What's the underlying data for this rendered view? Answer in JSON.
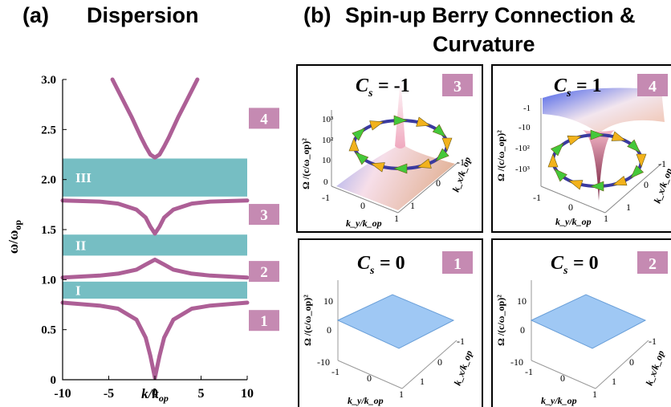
{
  "panel_a": {
    "label": "(a)",
    "title": "Dispersion"
  },
  "panel_b": {
    "label": "(b)",
    "title_line1": "Spin-up Berry Connection &",
    "title_line2": "Curvature"
  },
  "colors": {
    "band": "#ad5f96",
    "gap": "#76bec3",
    "badge": "#c58ab2",
    "arrow_ring": "#3a3aa0"
  },
  "chart_data": {
    "type": "line",
    "xlabel": "k/k_op",
    "ylabel": "ω/ω_op",
    "xlim": [
      -10,
      10
    ],
    "ylim": [
      0,
      3
    ],
    "xticks": [
      "-10",
      "-5",
      "0",
      "5",
      "10"
    ],
    "yticks": [
      "0",
      "0.5",
      "1.0",
      "1.5",
      "2.0",
      "2.5",
      "3.0"
    ],
    "series": [
      {
        "band": "1",
        "x": [
          -10,
          -6,
          -4,
          -2,
          -1,
          -0.5,
          0,
          0.5,
          1,
          2,
          4,
          6,
          10
        ],
        "y": [
          0.77,
          0.74,
          0.71,
          0.6,
          0.42,
          0.24,
          0.02,
          0.24,
          0.42,
          0.6,
          0.71,
          0.74,
          0.77
        ]
      },
      {
        "band": "2",
        "x": [
          -10,
          -6,
          -4,
          -2,
          -1,
          0,
          1,
          2,
          4,
          6,
          10
        ],
        "y": [
          1.02,
          1.04,
          1.06,
          1.1,
          1.15,
          1.2,
          1.15,
          1.1,
          1.06,
          1.04,
          1.02
        ]
      },
      {
        "band": "3",
        "x": [
          -10,
          -6,
          -4,
          -2,
          -1,
          -0.5,
          0,
          0.5,
          1,
          2,
          4,
          6,
          10
        ],
        "y": [
          1.79,
          1.78,
          1.76,
          1.7,
          1.62,
          1.53,
          1.46,
          1.53,
          1.62,
          1.7,
          1.76,
          1.78,
          1.79
        ]
      },
      {
        "band": "4",
        "x": [
          -4.6,
          -3.5,
          -2.5,
          -1.5,
          -1,
          -0.5,
          0,
          0.5,
          1,
          1.5,
          2.5,
          3.5,
          4.6
        ],
        "y": [
          3.0,
          2.8,
          2.62,
          2.42,
          2.33,
          2.25,
          2.22,
          2.25,
          2.33,
          2.42,
          2.62,
          2.8,
          3.0
        ]
      }
    ],
    "gaps": [
      {
        "label": "I",
        "y0": 0.81,
        "y1": 0.98
      },
      {
        "label": "II",
        "y0": 1.24,
        "y1": 1.45
      },
      {
        "label": "III",
        "y0": 1.83,
        "y1": 2.21
      }
    ],
    "band_labels": [
      {
        "label": "1",
        "y": 0.6
      },
      {
        "label": "2",
        "y": 1.09
      },
      {
        "label": "3",
        "y": 1.66
      },
      {
        "label": "4",
        "y": 2.62
      }
    ]
  },
  "subplots": [
    {
      "id": "3",
      "cs_label": "C",
      "cs_sub": "s",
      "cs_value": "= -1",
      "badge": "3",
      "zlabel": "Ω /(c/ω_op)²",
      "zticks": [
        "10³",
        "10²",
        "10",
        "0"
      ],
      "xlabel": "k_y/k_op",
      "ylabel": "k_x/k_op",
      "xticks": [
        "-1",
        "0",
        "1"
      ],
      "yticks": [
        "-1",
        "0",
        "1"
      ]
    },
    {
      "id": "4",
      "cs_label": "C",
      "cs_sub": "s",
      "cs_value": "= 1",
      "badge": "4",
      "zlabel": "Ω /(c/ω_op)²",
      "zticks": [
        "-1",
        "-10",
        "-10²",
        "-10³"
      ],
      "xlabel": "k_y/k_op",
      "ylabel": "k_x/k_op",
      "xticks": [
        "-1",
        "0",
        "1"
      ],
      "yticks": [
        "-1",
        "0",
        "1"
      ]
    },
    {
      "id": "1",
      "cs_label": "C",
      "cs_sub": "s",
      "cs_value": "= 0",
      "badge": "1",
      "zlabel": "Ω /(c/ω_op)²",
      "zticks": [
        "10",
        "0",
        "-10"
      ],
      "xlabel": "k_y/k_op",
      "ylabel": "k_x/k_op",
      "xticks": [
        "-1",
        "0",
        "1"
      ],
      "yticks": [
        "-1",
        "0",
        "1"
      ]
    },
    {
      "id": "2",
      "cs_label": "C",
      "cs_sub": "s",
      "cs_value": "= 0",
      "badge": "2",
      "zlabel": "Ω /(c/ω_op)²",
      "zticks": [
        "10",
        "0",
        "-10"
      ],
      "xlabel": "k_y/k_op",
      "ylabel": "k_x/k_op",
      "xticks": [
        "-1",
        "0",
        "1"
      ],
      "yticks": [
        "-1",
        "0",
        "1"
      ]
    }
  ]
}
